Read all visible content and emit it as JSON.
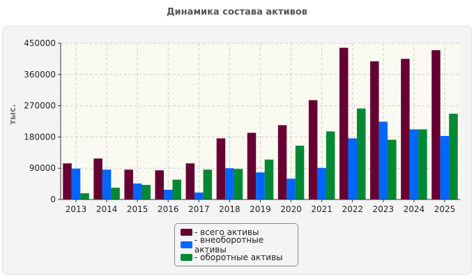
{
  "chart_data": {
    "type": "bar",
    "title": "Динамика состава активов",
    "ylabel": "тыс.",
    "xlabel": "",
    "categories": [
      "2013",
      "2014",
      "2015",
      "2016",
      "2017",
      "2018",
      "2019",
      "2020",
      "2021",
      "2022",
      "2023",
      "2024",
      "2025"
    ],
    "series": [
      {
        "name": "- всего активы",
        "color": "#660033",
        "values": [
          104000,
          118000,
          86000,
          84000,
          104000,
          176000,
          192000,
          214000,
          286000,
          437000,
          398000,
          405000,
          430000
        ]
      },
      {
        "name": "- внеоборотные активы",
        "color": "#0066ff",
        "values": [
          89000,
          86000,
          46000,
          28000,
          20000,
          90000,
          78000,
          60000,
          91000,
          176000,
          224000,
          202000,
          183000
        ]
      },
      {
        "name": "- оборотные активы",
        "color": "#008833",
        "values": [
          18000,
          34000,
          42000,
          57000,
          86000,
          88000,
          115000,
          155000,
          196000,
          262000,
          172000,
          202000,
          247000
        ]
      }
    ],
    "ylim": [
      0,
      450000
    ],
    "yticks": [
      "0",
      "90000",
      "180000",
      "270000",
      "360000",
      "450000"
    ],
    "grid": true,
    "legend_position": "bottom"
  }
}
